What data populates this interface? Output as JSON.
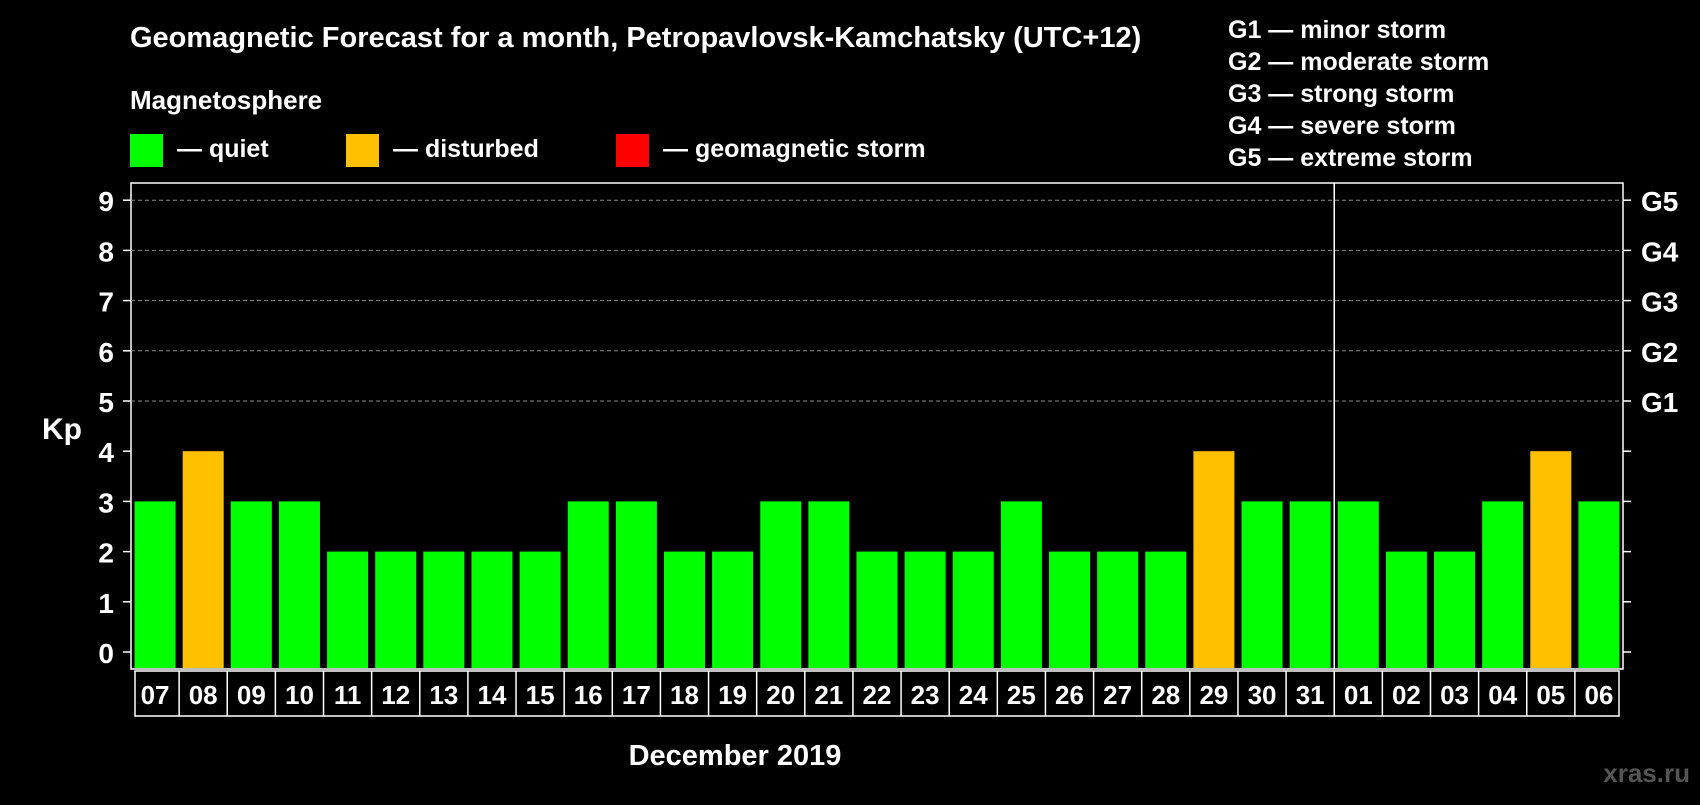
{
  "title": "Geomagnetic Forecast for a month, Petropavlovsk-Kamchatsky (UTC+12)",
  "legend": {
    "heading": "Magnetosphere",
    "items": [
      {
        "label": "— quiet",
        "color": "#00ff00"
      },
      {
        "label": "— disturbed",
        "color": "#ffc000"
      },
      {
        "label": "— geomagnetic storm",
        "color": "#ff0000"
      }
    ]
  },
  "storm_legend": [
    "G1 — minor storm",
    "G2 — moderate storm",
    "G3 — strong storm",
    "G4 — severe storm",
    "G5 — extreme storm"
  ],
  "watermark": "xras.ru",
  "chart_data": {
    "type": "bar",
    "title": "Geomagnetic Forecast for a month, Petropavlovsk-Kamchatsky (UTC+12)",
    "xlabel": "December 2019",
    "ylabel": "Kp",
    "ylim": [
      0,
      9
    ],
    "yticks": [
      0,
      1,
      2,
      3,
      4,
      5,
      6,
      7,
      8,
      9
    ],
    "right_ticks": {
      "5": "G1",
      "6": "G2",
      "7": "G3",
      "8": "G4",
      "9": "G5"
    },
    "grid": "dashed at Kp 5-9",
    "categories": [
      "07",
      "08",
      "09",
      "10",
      "11",
      "12",
      "13",
      "14",
      "15",
      "16",
      "17",
      "18",
      "19",
      "20",
      "21",
      "22",
      "23",
      "24",
      "25",
      "26",
      "27",
      "28",
      "29",
      "30",
      "31",
      "01",
      "02",
      "03",
      "04",
      "05",
      "06"
    ],
    "values": [
      3,
      4,
      3,
      3,
      2,
      2,
      2,
      2,
      2,
      3,
      3,
      2,
      2,
      3,
      3,
      2,
      2,
      2,
      3,
      2,
      2,
      2,
      4,
      3,
      3,
      3,
      2,
      2,
      3,
      4,
      3
    ],
    "colors": {
      "quiet": "#00ff00",
      "disturbed": "#ffc000",
      "storm": "#ff0000"
    },
    "month_divider_after": "31"
  }
}
